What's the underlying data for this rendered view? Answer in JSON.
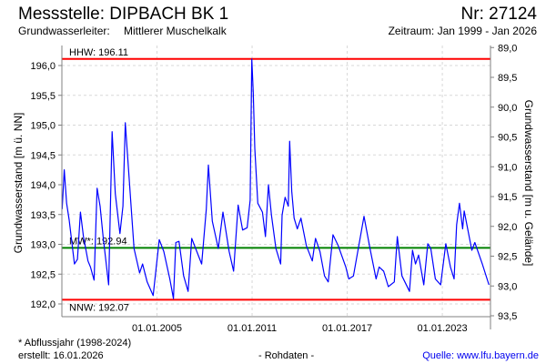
{
  "header": {
    "title": "Messstelle: DIPBACH BK 1",
    "number": "Nr: 27124",
    "aquifer_label": "Grundwasserleiter:",
    "aquifer_value": "Mittlerer Muschelkalk",
    "period": "Zeitraum: Jan 1999 - Jan 2026"
  },
  "footer": {
    "footnote": "* Abflussjahr (1998-2024)",
    "created": "erstellt:  16.01.2026",
    "raw": "- Rohdaten -",
    "source": "Quelle: www.lfu.bayern.de"
  },
  "colors": {
    "series": "#0000ff",
    "extreme": "#ff0000",
    "mean": "#008000",
    "grid": "#d8d8d8"
  },
  "chart_data": {
    "type": "line",
    "ylabel": "Grundwasserstand [m ü. NN]",
    "ylabel_right": "Grundwasserstand [m u. Gelände]",
    "xlim": [
      1999.0,
      2026.1
    ],
    "ylim": [
      191.79,
      196.26
    ],
    "yticks": [
      "192,0",
      "192,5",
      "193,0",
      "193,5",
      "194,0",
      "194,5",
      "195,0",
      "195,5",
      "196,0"
    ],
    "ytick_values": [
      192.0,
      192.5,
      193.0,
      193.5,
      194.0,
      194.5,
      195.0,
      195.5,
      196.0
    ],
    "yticks_right": [
      "89,0",
      "89,5",
      "90,0",
      "90,5",
      "91,0",
      "91,5",
      "92,0",
      "92,5",
      "93,0",
      "93,5"
    ],
    "ytick_right_values": [
      89.0,
      89.5,
      90.0,
      90.5,
      91.0,
      91.5,
      92.0,
      92.5,
      93.0,
      93.5
    ],
    "xticks": [
      "01.01.2005",
      "01.01.2011",
      "01.01.2017",
      "01.01.2023"
    ],
    "xtick_values": [
      2005,
      2011,
      2017,
      2023
    ],
    "grid": true,
    "reference_lines": [
      {
        "name": "HHW",
        "label": "HHW: 196.11",
        "value": 196.11,
        "color": "#ff0000"
      },
      {
        "name": "MW",
        "label": "MW*: 192.94",
        "value": 192.94,
        "color": "#008000"
      },
      {
        "name": "NNW",
        "label": "NNW: 192.07",
        "value": 192.07,
        "color": "#ff0000"
      }
    ],
    "series": [
      {
        "name": "Grundwasserstand",
        "points": [
          [
            1999.02,
            193.59
          ],
          [
            1999.15,
            194.25
          ],
          [
            1999.3,
            193.69
          ],
          [
            1999.46,
            193.41
          ],
          [
            1999.79,
            192.67
          ],
          [
            1999.98,
            192.75
          ],
          [
            2000.17,
            193.54
          ],
          [
            2000.36,
            193.13
          ],
          [
            2000.65,
            192.72
          ],
          [
            2000.8,
            192.62
          ],
          [
            2001.03,
            192.4
          ],
          [
            2001.22,
            193.94
          ],
          [
            2001.41,
            193.64
          ],
          [
            2001.6,
            193.13
          ],
          [
            2001.95,
            192.32
          ],
          [
            2002.17,
            194.89
          ],
          [
            2002.37,
            193.85
          ],
          [
            2002.66,
            193.18
          ],
          [
            2002.85,
            193.64
          ],
          [
            2003.0,
            195.04
          ],
          [
            2003.13,
            194.55
          ],
          [
            2003.55,
            192.93
          ],
          [
            2003.9,
            192.52
          ],
          [
            2004.09,
            192.67
          ],
          [
            2004.38,
            192.37
          ],
          [
            2004.76,
            192.14
          ],
          [
            2005.14,
            193.08
          ],
          [
            2005.43,
            192.88
          ],
          [
            2005.81,
            192.42
          ],
          [
            2006.04,
            192.09
          ],
          [
            2006.19,
            193.03
          ],
          [
            2006.39,
            193.05
          ],
          [
            2006.68,
            192.47
          ],
          [
            2006.96,
            192.21
          ],
          [
            2007.19,
            193.1
          ],
          [
            2007.44,
            192.93
          ],
          [
            2007.82,
            192.67
          ],
          [
            2008.11,
            193.59
          ],
          [
            2008.24,
            194.33
          ],
          [
            2008.49,
            193.39
          ],
          [
            2008.87,
            192.93
          ],
          [
            2009.16,
            193.54
          ],
          [
            2009.55,
            192.88
          ],
          [
            2009.83,
            192.55
          ],
          [
            2010.12,
            193.66
          ],
          [
            2010.4,
            193.24
          ],
          [
            2010.69,
            193.28
          ],
          [
            2010.88,
            193.74
          ],
          [
            2010.98,
            196.11
          ],
          [
            2011.07,
            195.55
          ],
          [
            2011.17,
            194.61
          ],
          [
            2011.36,
            193.69
          ],
          [
            2011.65,
            193.54
          ],
          [
            2011.84,
            193.13
          ],
          [
            2012.03,
            194.0
          ],
          [
            2012.22,
            193.49
          ],
          [
            2012.5,
            192.93
          ],
          [
            2012.8,
            192.67
          ],
          [
            2012.89,
            193.49
          ],
          [
            2013.08,
            193.79
          ],
          [
            2013.28,
            193.64
          ],
          [
            2013.37,
            194.73
          ],
          [
            2013.5,
            193.89
          ],
          [
            2013.65,
            193.44
          ],
          [
            2013.85,
            193.26
          ],
          [
            2014.08,
            193.44
          ],
          [
            2014.42,
            192.98
          ],
          [
            2014.8,
            192.72
          ],
          [
            2015.0,
            193.1
          ],
          [
            2015.28,
            192.88
          ],
          [
            2015.57,
            192.47
          ],
          [
            2015.8,
            192.37
          ],
          [
            2016.1,
            193.16
          ],
          [
            2016.43,
            192.98
          ],
          [
            2016.91,
            192.62
          ],
          [
            2017.1,
            192.42
          ],
          [
            2017.39,
            192.47
          ],
          [
            2018.06,
            193.47
          ],
          [
            2018.44,
            192.93
          ],
          [
            2018.82,
            192.42
          ],
          [
            2019.01,
            192.62
          ],
          [
            2019.3,
            192.55
          ],
          [
            2019.59,
            192.29
          ],
          [
            2019.97,
            192.37
          ],
          [
            2020.16,
            193.13
          ],
          [
            2020.45,
            192.47
          ],
          [
            2020.93,
            192.21
          ],
          [
            2021.12,
            192.9
          ],
          [
            2021.31,
            192.67
          ],
          [
            2021.5,
            192.82
          ],
          [
            2021.83,
            192.32
          ],
          [
            2022.08,
            193.01
          ],
          [
            2022.27,
            192.93
          ],
          [
            2022.56,
            192.42
          ],
          [
            2022.89,
            192.32
          ],
          [
            2023.22,
            193.01
          ],
          [
            2023.51,
            192.62
          ],
          [
            2023.74,
            192.42
          ],
          [
            2023.9,
            193.33
          ],
          [
            2024.08,
            193.69
          ],
          [
            2024.28,
            193.26
          ],
          [
            2024.38,
            193.56
          ],
          [
            2024.86,
            192.9
          ],
          [
            2025.05,
            193.03
          ],
          [
            2025.52,
            192.67
          ],
          [
            2025.94,
            192.32
          ]
        ]
      }
    ]
  }
}
